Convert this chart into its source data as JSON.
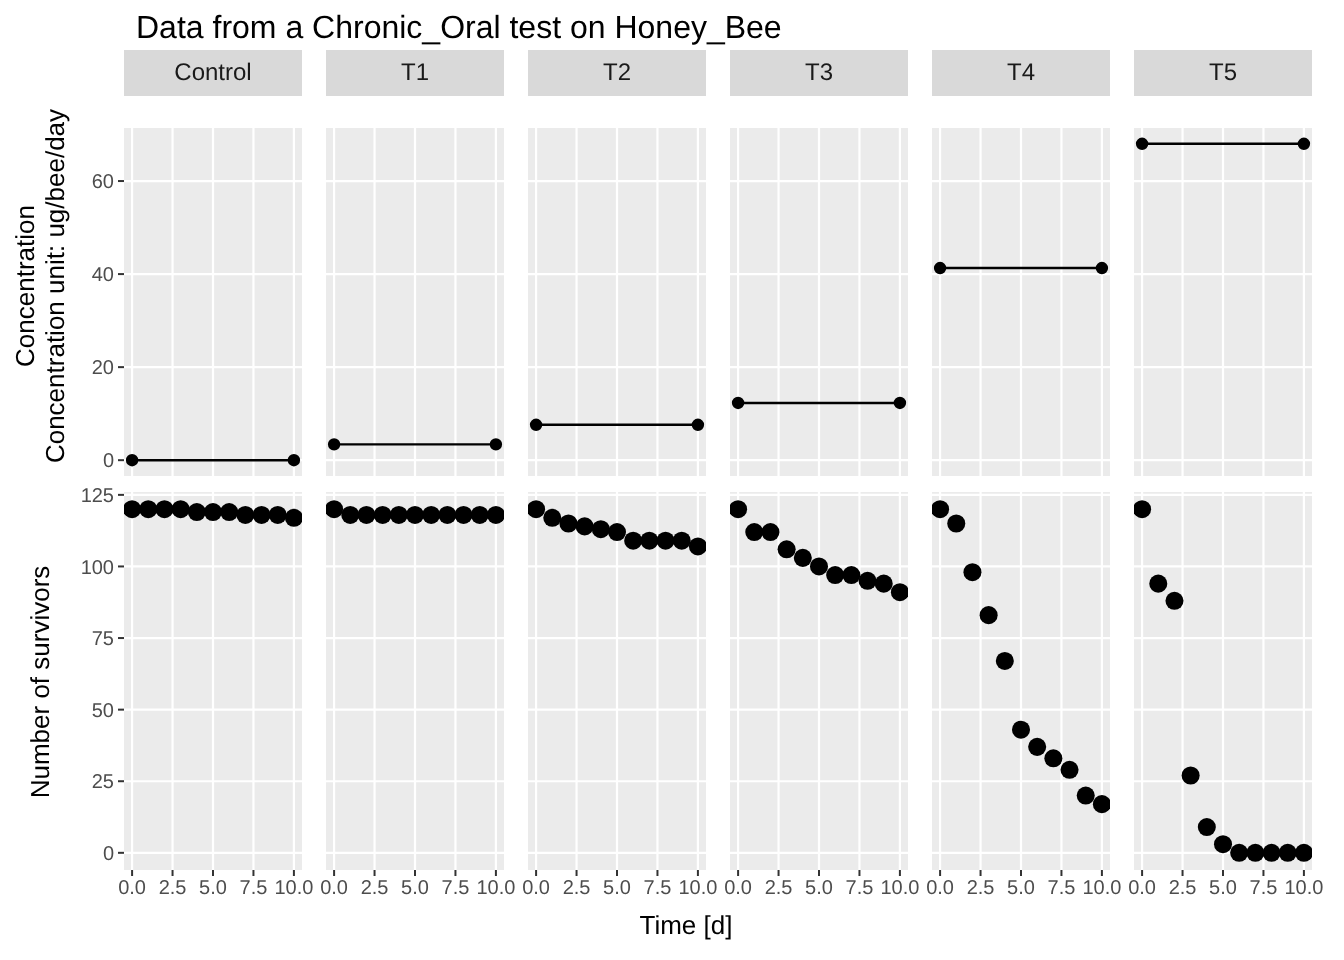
{
  "chart_data": [
    {
      "type": "line",
      "title": "Data from a Chronic_Oral test on Honey_Bee",
      "subtitle": "Control",
      "ylabel": "Concentration\nConcentration unit: ug/bee/day",
      "x": [
        0,
        10
      ],
      "values": [
        0,
        0
      ],
      "color": "#000000",
      "marker": "circle",
      "xlim": [
        -0.5,
        10.5
      ],
      "xticks": [
        {
          "value": 0,
          "label": null
        },
        {
          "value": 2.5,
          "label": null
        },
        {
          "value": 5,
          "label": null
        },
        {
          "value": 7.5,
          "label": null
        },
        {
          "value": 10,
          "label": null
        }
      ],
      "ylim": [
        -3.4,
        71.4
      ],
      "yticks": [
        0,
        20,
        40,
        60
      ],
      "grid": true,
      "tick_labels": "y"
    },
    {
      "type": "line",
      "subtitle": "T1",
      "x": [
        0,
        10
      ],
      "values": [
        3.4,
        3.4
      ],
      "color": "#000000",
      "marker": "circle",
      "xlim": [
        -0.5,
        10.5
      ],
      "xticks": [
        {
          "value": 0,
          "label": null
        },
        {
          "value": 2.5,
          "label": null
        },
        {
          "value": 5,
          "label": null
        },
        {
          "value": 7.5,
          "label": null
        },
        {
          "value": 10,
          "label": null
        }
      ],
      "ylim": [
        -3.4,
        71.4
      ],
      "yticks": [
        {
          "value": 0,
          "label": null
        },
        {
          "value": 20,
          "label": null
        },
        {
          "value": 40,
          "label": null
        },
        {
          "value": 60,
          "label": null
        }
      ],
      "grid": true,
      "tick_labels": false
    },
    {
      "type": "line",
      "subtitle": "T2",
      "x": [
        0,
        10
      ],
      "values": [
        7.6,
        7.6
      ],
      "color": "#000000",
      "marker": "circle",
      "xlim": [
        -0.5,
        10.5
      ],
      "xticks": [
        {
          "value": 0,
          "label": null
        },
        {
          "value": 2.5,
          "label": null
        },
        {
          "value": 5,
          "label": null
        },
        {
          "value": 7.5,
          "label": null
        },
        {
          "value": 10,
          "label": null
        }
      ],
      "ylim": [
        -3.4,
        71.4
      ],
      "yticks": [
        {
          "value": 0,
          "label": null
        },
        {
          "value": 20,
          "label": null
        },
        {
          "value": 40,
          "label": null
        },
        {
          "value": 60,
          "label": null
        }
      ],
      "grid": true,
      "tick_labels": false
    },
    {
      "type": "line",
      "subtitle": "T3",
      "x": [
        0,
        10
      ],
      "values": [
        12.3,
        12.3
      ],
      "color": "#000000",
      "marker": "circle",
      "xlim": [
        -0.5,
        10.5
      ],
      "xticks": [
        {
          "value": 0,
          "label": null
        },
        {
          "value": 2.5,
          "label": null
        },
        {
          "value": 5,
          "label": null
        },
        {
          "value": 7.5,
          "label": null
        },
        {
          "value": 10,
          "label": null
        }
      ],
      "ylim": [
        -3.4,
        71.4
      ],
      "yticks": [
        {
          "value": 0,
          "label": null
        },
        {
          "value": 20,
          "label": null
        },
        {
          "value": 40,
          "label": null
        },
        {
          "value": 60,
          "label": null
        }
      ],
      "grid": true,
      "tick_labels": false
    },
    {
      "type": "line",
      "subtitle": "T4",
      "x": [
        0,
        10
      ],
      "values": [
        41.3,
        41.3
      ],
      "color": "#000000",
      "marker": "circle",
      "xlim": [
        -0.5,
        10.5
      ],
      "xticks": [
        {
          "value": 0,
          "label": null
        },
        {
          "value": 2.5,
          "label": null
        },
        {
          "value": 5,
          "label": null
        },
        {
          "value": 7.5,
          "label": null
        },
        {
          "value": 10,
          "label": null
        }
      ],
      "ylim": [
        -3.4,
        71.4
      ],
      "yticks": [
        {
          "value": 0,
          "label": null
        },
        {
          "value": 20,
          "label": null
        },
        {
          "value": 40,
          "label": null
        },
        {
          "value": 60,
          "label": null
        }
      ],
      "grid": true,
      "tick_labels": false
    },
    {
      "type": "line",
      "subtitle": "T5",
      "x": [
        0,
        10
      ],
      "values": [
        68,
        68
      ],
      "color": "#000000",
      "marker": "circle",
      "xlim": [
        -0.5,
        10.5
      ],
      "xticks": [
        {
          "value": 0,
          "label": null
        },
        {
          "value": 2.5,
          "label": null
        },
        {
          "value": 5,
          "label": null
        },
        {
          "value": 7.5,
          "label": null
        },
        {
          "value": 10,
          "label": null
        }
      ],
      "ylim": [
        -3.4,
        71.4
      ],
      "yticks": [
        {
          "value": 0,
          "label": null
        },
        {
          "value": 20,
          "label": null
        },
        {
          "value": 40,
          "label": null
        },
        {
          "value": 60,
          "label": null
        }
      ],
      "grid": true,
      "tick_labels": false
    },
    {
      "type": "scatter",
      "ylabel": "Number of survivors",
      "x": [
        0,
        1,
        2,
        3,
        4,
        5,
        6,
        7,
        8,
        9,
        10
      ],
      "values": [
        120,
        120,
        120,
        120,
        119,
        119,
        119,
        118,
        118,
        118,
        117
      ],
      "color": "#000000",
      "marker": "circle",
      "xlim": [
        -0.5,
        10.5
      ],
      "xticks": [
        {
          "value": 0,
          "label": "0.0"
        },
        {
          "value": 2.5,
          "label": "2.5"
        },
        {
          "value": 5,
          "label": "5.0"
        },
        {
          "value": 7.5,
          "label": "7.5"
        },
        {
          "value": 10,
          "label": "10.0"
        }
      ],
      "ylim": [
        -6,
        126
      ],
      "yticks": [
        0,
        25,
        50,
        75,
        100,
        125
      ],
      "grid": true
    },
    {
      "type": "scatter",
      "x": [
        0,
        1,
        2,
        3,
        4,
        5,
        6,
        7,
        8,
        9,
        10
      ],
      "values": [
        120,
        118,
        118,
        118,
        118,
        118,
        118,
        118,
        118,
        118,
        118
      ],
      "color": "#000000",
      "marker": "circle",
      "xlim": [
        -0.5,
        10.5
      ],
      "xticks": [
        {
          "value": 0,
          "label": "0.0"
        },
        {
          "value": 2.5,
          "label": "2.5"
        },
        {
          "value": 5,
          "label": "5.0"
        },
        {
          "value": 7.5,
          "label": "7.5"
        },
        {
          "value": 10,
          "label": "10.0"
        }
      ],
      "ylim": [
        -6,
        126
      ],
      "yticks": [
        {
          "value": 0,
          "label": null
        },
        {
          "value": 25,
          "label": null
        },
        {
          "value": 50,
          "label": null
        },
        {
          "value": 75,
          "label": null
        },
        {
          "value": 100,
          "label": null
        },
        {
          "value": 125,
          "label": null
        }
      ],
      "grid": true,
      "tick_labels": "x"
    },
    {
      "type": "scatter",
      "x": [
        0,
        1,
        2,
        3,
        4,
        5,
        6,
        7,
        8,
        9,
        10
      ],
      "xlabel": "Time [d]",
      "values": [
        120,
        117,
        115,
        114,
        113,
        112,
        109,
        109,
        109,
        109,
        107
      ],
      "color": "#000000",
      "marker": "circle",
      "xlim": [
        -0.5,
        10.5
      ],
      "xticks": [
        {
          "value": 0,
          "label": "0.0"
        },
        {
          "value": 2.5,
          "label": "2.5"
        },
        {
          "value": 5,
          "label": "5.0"
        },
        {
          "value": 7.5,
          "label": "7.5"
        },
        {
          "value": 10,
          "label": "10.0"
        }
      ],
      "ylim": [
        -6,
        126
      ],
      "yticks": [
        {
          "value": 0,
          "label": null
        },
        {
          "value": 25,
          "label": null
        },
        {
          "value": 50,
          "label": null
        },
        {
          "value": 75,
          "label": null
        },
        {
          "value": 100,
          "label": null
        },
        {
          "value": 125,
          "label": null
        }
      ],
      "grid": true,
      "tick_labels": "x"
    },
    {
      "type": "scatter",
      "x": [
        0,
        1,
        2,
        3,
        4,
        5,
        6,
        7,
        8,
        9,
        10
      ],
      "values": [
        120,
        112,
        112,
        106,
        103,
        100,
        97,
        97,
        95,
        94,
        91
      ],
      "color": "#000000",
      "marker": "circle",
      "xlim": [
        -0.5,
        10.5
      ],
      "xticks": [
        {
          "value": 0,
          "label": "0.0"
        },
        {
          "value": 2.5,
          "label": "2.5"
        },
        {
          "value": 5,
          "label": "5.0"
        },
        {
          "value": 7.5,
          "label": "7.5"
        },
        {
          "value": 10,
          "label": "10.0"
        }
      ],
      "ylim": [
        -6,
        126
      ],
      "yticks": [
        {
          "value": 0,
          "label": null
        },
        {
          "value": 25,
          "label": null
        },
        {
          "value": 50,
          "label": null
        },
        {
          "value": 75,
          "label": null
        },
        {
          "value": 100,
          "label": null
        },
        {
          "value": 125,
          "label": null
        }
      ],
      "grid": true,
      "tick_labels": "x"
    },
    {
      "type": "scatter",
      "x": [
        0,
        1,
        2,
        3,
        4,
        5,
        6,
        7,
        8,
        9,
        10
      ],
      "values": [
        120,
        115,
        98,
        83,
        67,
        43,
        37,
        33,
        29,
        20,
        17
      ],
      "color": "#000000",
      "marker": "circle",
      "xlim": [
        -0.5,
        10.5
      ],
      "xticks": [
        {
          "value": 0,
          "label": "0.0"
        },
        {
          "value": 2.5,
          "label": "2.5"
        },
        {
          "value": 5,
          "label": "5.0"
        },
        {
          "value": 7.5,
          "label": "7.5"
        },
        {
          "value": 10,
          "label": "10.0"
        }
      ],
      "ylim": [
        -6,
        126
      ],
      "yticks": [
        {
          "value": 0,
          "label": null
        },
        {
          "value": 25,
          "label": null
        },
        {
          "value": 50,
          "label": null
        },
        {
          "value": 75,
          "label": null
        },
        {
          "value": 100,
          "label": null
        },
        {
          "value": 125,
          "label": null
        }
      ],
      "grid": true,
      "tick_labels": "x"
    },
    {
      "type": "scatter",
      "x": [
        0,
        1,
        2,
        3,
        4,
        5,
        6,
        7,
        8,
        9,
        10
      ],
      "values": [
        120,
        94,
        88,
        27,
        9,
        3,
        0,
        0,
        0,
        0,
        0
      ],
      "color": "#000000",
      "marker": "circle",
      "xlim": [
        -0.5,
        10.5
      ],
      "xticks": [
        {
          "value": 0,
          "label": "0.0"
        },
        {
          "value": 2.5,
          "label": "2.5"
        },
        {
          "value": 5,
          "label": "5.0"
        },
        {
          "value": 7.5,
          "label": "7.5"
        },
        {
          "value": 10,
          "label": "10.0"
        }
      ],
      "ylim": [
        -6,
        126
      ],
      "yticks": [
        {
          "value": 0,
          "label": null
        },
        {
          "value": 25,
          "label": null
        },
        {
          "value": 50,
          "label": null
        },
        {
          "value": 75,
          "label": null
        },
        {
          "value": 100,
          "label": null
        },
        {
          "value": 125,
          "label": null
        }
      ],
      "grid": true,
      "tick_labels": "x"
    }
  ]
}
